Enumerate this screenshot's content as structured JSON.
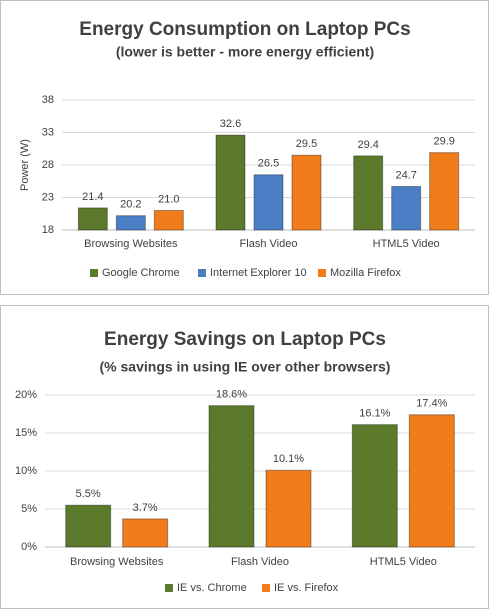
{
  "chart_data": [
    {
      "type": "bar",
      "title": "Energy Consumption on Laptop PCs",
      "subtitle": "(lower is better - more energy efficient)",
      "y_label": "Power (W)",
      "categories": [
        "Browsing Websites",
        "Flash Video",
        "HTML5 Video"
      ],
      "series": [
        {
          "name": "Google Chrome",
          "color": "#5b7a2c",
          "values": [
            21.4,
            32.6,
            29.4
          ],
          "value_labels": [
            "21.4",
            "32.6",
            "29.4"
          ]
        },
        {
          "name": "Internet Explorer 10",
          "color": "#4a7fc6",
          "values": [
            20.2,
            26.5,
            24.7
          ],
          "value_labels": [
            "20.2",
            "26.5",
            "24.7"
          ]
        },
        {
          "name": "Mozilla Firefox",
          "color": "#f07c1a",
          "values": [
            21.0,
            29.5,
            29.9
          ],
          "value_labels": [
            "21.0",
            "29.5",
            "29.9"
          ]
        }
      ],
      "ylim": [
        18,
        38
      ],
      "yticks": [
        18,
        23,
        28,
        33,
        38
      ],
      "grid": true,
      "legend": "bottom"
    },
    {
      "type": "bar",
      "title": "Energy Savings on Laptop PCs",
      "subtitle": "(% savings in using IE over other browsers)",
      "categories": [
        "Browsing Websites",
        "Flash Video",
        "HTML5 Video"
      ],
      "series": [
        {
          "name": "IE vs. Chrome",
          "color": "#5b7a2c",
          "values": [
            5.5,
            18.6,
            16.1
          ],
          "value_labels": [
            "5.5%",
            "18.6%",
            "16.1%"
          ]
        },
        {
          "name": "IE vs. Firefox",
          "color": "#f07c1a",
          "values": [
            3.7,
            10.1,
            17.4
          ],
          "value_labels": [
            "3.7%",
            "10.1%",
            "17.4%"
          ]
        }
      ],
      "ylim": [
        0,
        20
      ],
      "yticks": [
        {
          "value": 0,
          "label": "0%"
        },
        {
          "value": 5,
          "label": "5%"
        },
        {
          "value": 10,
          "label": "10%"
        },
        {
          "value": 15,
          "label": "15%"
        },
        {
          "value": 20,
          "label": "20%"
        }
      ],
      "grid": true,
      "legend": "bottom"
    }
  ]
}
